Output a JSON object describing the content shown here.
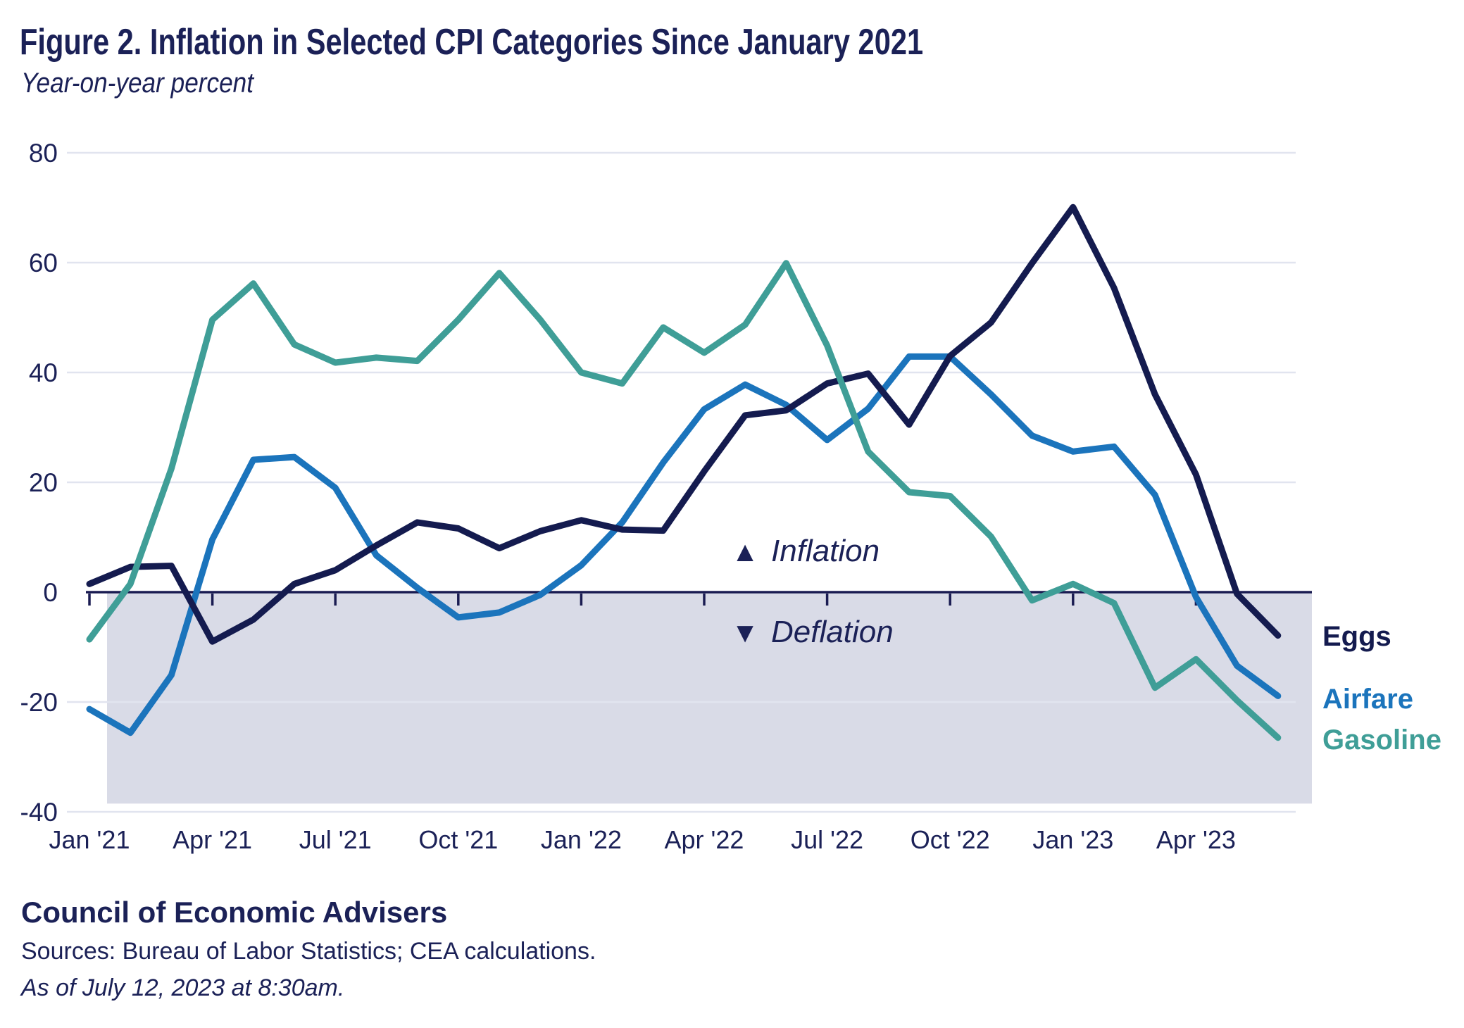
{
  "title": "Figure 2. Inflation in Selected CPI Categories Since January 2021",
  "subtitle": "Year-on-year percent",
  "annotations": {
    "inflation_symbol": "▲",
    "inflation_label": "Inflation",
    "deflation_symbol": "▼",
    "deflation_label": "Deflation"
  },
  "footer": {
    "org": "Council of Economic Advisers",
    "sources": "Sources: Bureau of Labor Statistics; CEA calculations.",
    "as_of": "As of July 12, 2023 at 8:30am."
  },
  "colors": {
    "navy_text": "#1b2157",
    "eggs": "#141b4f",
    "airfare": "#1b74bc",
    "gasoline": "#3f9e97",
    "gridline": "#e1e4ef",
    "zero_axis": "#1a1c52",
    "deflation_shade": "#d9dbe7",
    "background": "#ffffff"
  },
  "chart_data": {
    "type": "line",
    "title": "Figure 2. Inflation in Selected CPI Categories Since January 2021",
    "ylabel": "Year-on-year percent",
    "xlabel": "",
    "ylim": [
      -40,
      80
    ],
    "yticks": [
      80,
      60,
      40,
      20,
      0,
      -20,
      -40
    ],
    "grid": "horizontal",
    "legend_position": "right of line ends",
    "x": [
      "Jan '21",
      "Feb '21",
      "Mar '21",
      "Apr '21",
      "May '21",
      "Jun '21",
      "Jul '21",
      "Aug '21",
      "Sep '21",
      "Oct '21",
      "Nov '21",
      "Dec '21",
      "Jan '22",
      "Feb '22",
      "Mar '22",
      "Apr '22",
      "May '22",
      "Jun '22",
      "Jul '22",
      "Aug '22",
      "Sep '22",
      "Oct '22",
      "Nov '22",
      "Dec '22",
      "Jan '23",
      "Feb '23",
      "Mar '23",
      "Apr '23",
      "May '23",
      "Jun '23"
    ],
    "xticks_shown": [
      {
        "index": 0,
        "label": "Jan '21"
      },
      {
        "index": 3,
        "label": "Apr '21"
      },
      {
        "index": 6,
        "label": "Jul '21"
      },
      {
        "index": 9,
        "label": "Oct '21"
      },
      {
        "index": 12,
        "label": "Jan '22"
      },
      {
        "index": 15,
        "label": "Apr '22"
      },
      {
        "index": 18,
        "label": "Jul '22"
      },
      {
        "index": 21,
        "label": "Oct '22"
      },
      {
        "index": 24,
        "label": "Jan '23"
      },
      {
        "index": 27,
        "label": "Apr '23"
      }
    ],
    "series": [
      {
        "name": "Eggs",
        "color_key": "eggs",
        "values": [
          1.5,
          4.6,
          4.8,
          -9.0,
          -5.0,
          1.5,
          4.0,
          8.5,
          12.7,
          11.6,
          8.0,
          11.1,
          13.1,
          11.4,
          11.2,
          22.0,
          32.2,
          33.1,
          38.0,
          39.8,
          30.5,
          43.0,
          49.1,
          59.9,
          70.1,
          55.4,
          36.0,
          21.4,
          -0.3,
          -7.9
        ]
      },
      {
        "name": "Airfare",
        "color_key": "airfare",
        "values": [
          -21.3,
          -25.6,
          -15.1,
          9.6,
          24.1,
          24.6,
          19.0,
          6.7,
          0.8,
          -4.6,
          -3.7,
          -0.5,
          4.9,
          12.7,
          23.6,
          33.3,
          37.8,
          34.1,
          27.7,
          33.4,
          42.9,
          42.9,
          36.0,
          28.5,
          25.6,
          26.5,
          17.7,
          -0.9,
          -13.4,
          -18.9
        ]
      },
      {
        "name": "Gasoline",
        "color_key": "gasoline",
        "values": [
          -8.6,
          1.5,
          22.5,
          49.6,
          56.2,
          45.1,
          41.8,
          42.7,
          42.1,
          49.6,
          58.1,
          49.6,
          40.0,
          38.0,
          48.2,
          43.6,
          48.7,
          59.9,
          44.9,
          25.6,
          18.2,
          17.5,
          10.1,
          -1.5,
          1.5,
          -2.0,
          -17.4,
          -12.2,
          -19.7,
          -26.5
        ]
      }
    ],
    "deflation_shading": {
      "from": 0,
      "to": -38.5
    }
  }
}
